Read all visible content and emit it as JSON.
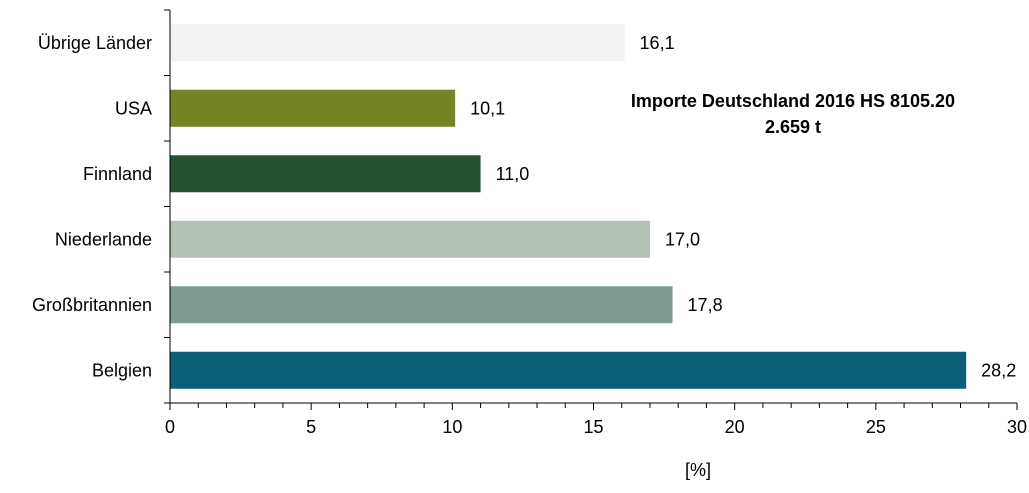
{
  "chart_data": {
    "type": "bar",
    "orientation": "horizontal",
    "title_lines": [
      "Importe Deutschland 2016 HS 8105.20",
      "2.659 t"
    ],
    "xlabel": "[%]",
    "ylabel": "",
    "xlim": [
      0,
      30
    ],
    "x_ticks": [
      "0",
      "5",
      "10",
      "15",
      "20",
      "25",
      "30"
    ],
    "grid": false,
    "legend": "none",
    "categories": [
      "Übrige Länder",
      "USA",
      "Finnland",
      "Niederlande",
      "Großbritannien",
      "Belgien"
    ],
    "values": [
      16.1,
      10.1,
      11.0,
      17.0,
      17.8,
      28.2
    ],
    "value_labels": [
      "16,1",
      "10,1",
      "11,0",
      "17,0",
      "17,8",
      "28,2"
    ],
    "colors": [
      "#f2f2f2",
      "#758526",
      "#225230",
      "#b4c2b5",
      "#7f9b94",
      "#0b5f77"
    ]
  }
}
